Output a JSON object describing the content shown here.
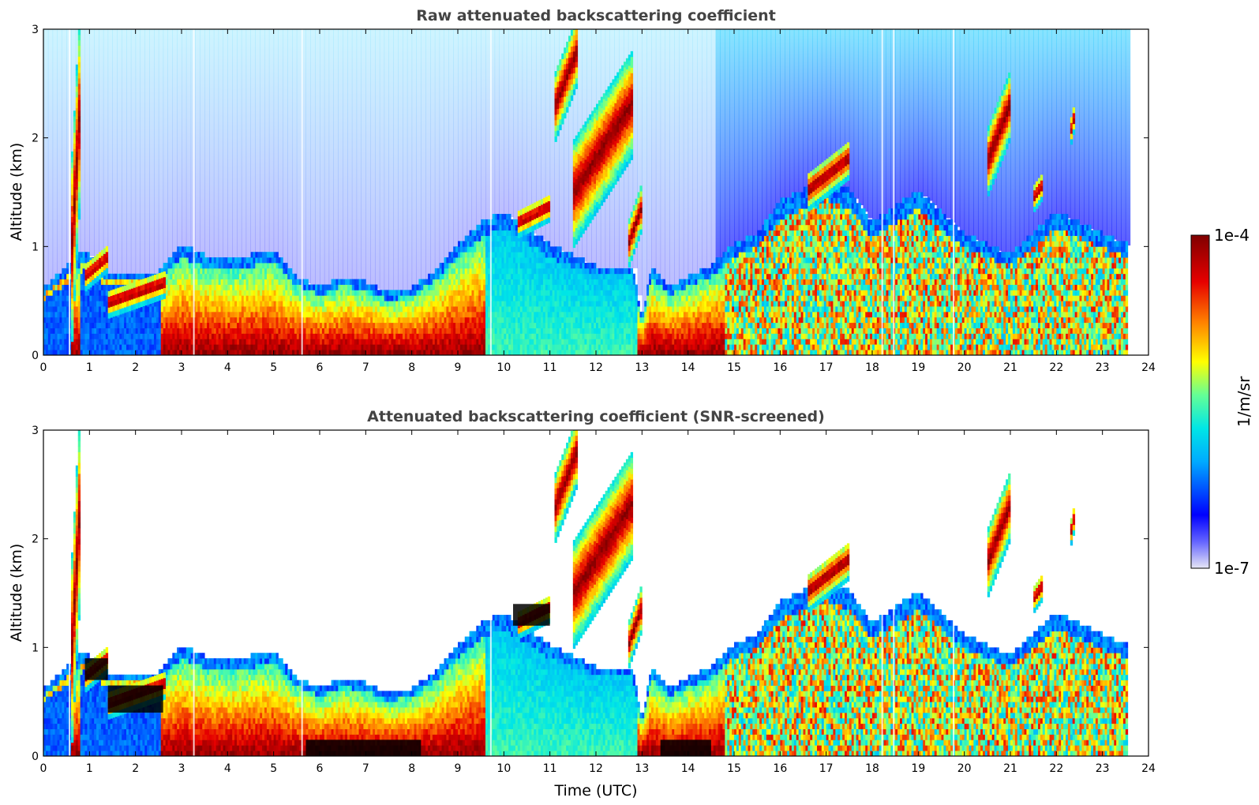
{
  "colors": {
    "scale": [
      "#e6e6f5",
      "#0000ff",
      "#00c8ff",
      "#64ff96",
      "#ffff00",
      "#ff8000",
      "#e60000",
      "#800000"
    ],
    "black": "#000000"
  },
  "colorbar": {
    "max_label": "1e-4",
    "min_label": "1e-7",
    "unit_label": "1/m/sr",
    "range": [
      1e-07,
      0.0001
    ],
    "scale": "log"
  },
  "chart_data": [
    {
      "type": "heatmap",
      "title": "Raw attenuated backscattering coefficient",
      "xlabel": "",
      "ylabel": "Altitude (km)",
      "xlim": [
        0,
        24
      ],
      "ylim": [
        0,
        3
      ],
      "x_ticks": [
        "0",
        "1",
        "2",
        "3",
        "4",
        "5",
        "6",
        "7",
        "8",
        "9",
        "10",
        "11",
        "12",
        "13",
        "14",
        "15",
        "16",
        "17",
        "18",
        "19",
        "20",
        "21",
        "22",
        "23",
        "24"
      ],
      "y_ticks": [
        "0",
        "1",
        "2",
        "3"
      ],
      "data_end_time": 23.55,
      "boundary_layer_top_km": [
        [
          0,
          0.6
        ],
        [
          0.9,
          0.95
        ],
        [
          1.4,
          0.75
        ],
        [
          2.5,
          0.75
        ],
        [
          3,
          1.0
        ],
        [
          3.5,
          0.9
        ],
        [
          4,
          0.85
        ],
        [
          4.5,
          0.9
        ],
        [
          5,
          0.95
        ],
        [
          5.5,
          0.7
        ],
        [
          6,
          0.6
        ],
        [
          6.5,
          0.7
        ],
        [
          7,
          0.65
        ],
        [
          7.5,
          0.55
        ],
        [
          8,
          0.6
        ],
        [
          8.5,
          0.75
        ],
        [
          9,
          1.0
        ],
        [
          9.5,
          1.2
        ],
        [
          10,
          1.3
        ],
        [
          11,
          1.0
        ],
        [
          12,
          0.8
        ],
        [
          12.8,
          0.8
        ],
        [
          13,
          0.3
        ],
        [
          13.2,
          0.8
        ],
        [
          13.6,
          0.6
        ],
        [
          14,
          0.7
        ],
        [
          14.5,
          0.8
        ],
        [
          15,
          1.0
        ],
        [
          15.5,
          1.1
        ],
        [
          16,
          1.4
        ],
        [
          16.5,
          1.5
        ],
        [
          17,
          1.6
        ],
        [
          17.5,
          1.5
        ],
        [
          18,
          1.2
        ],
        [
          19,
          1.5
        ],
        [
          19.5,
          1.3
        ],
        [
          20,
          1.1
        ],
        [
          21,
          0.9
        ],
        [
          22,
          1.3
        ],
        [
          23,
          1.1
        ],
        [
          23.55,
          1.0
        ]
      ],
      "elevated_layers": [
        {
          "t_start": 0.6,
          "t_end": 0.8,
          "alt_bottom_km": 0.5,
          "alt_top_km": 3.0,
          "peak": "1e-4"
        },
        {
          "t_start": 0.9,
          "t_end": 1.4,
          "alt_bottom_km": 0.65,
          "alt_top_km": 0.95,
          "peak": "1e-4"
        },
        {
          "t_start": 1.4,
          "t_end": 2.6,
          "alt_bottom_km": 0.4,
          "alt_top_km": 0.7,
          "peak": "1e-4"
        },
        {
          "t_start": 10.3,
          "t_end": 11.0,
          "alt_bottom_km": 1.15,
          "alt_top_km": 1.4,
          "peak": "1e-4"
        },
        {
          "t_start": 11.1,
          "t_end": 11.6,
          "alt_bottom_km": 2.1,
          "alt_top_km": 3.0,
          "peak": "1e-4"
        },
        {
          "t_start": 11.5,
          "t_end": 12.8,
          "alt_bottom_km": 1.2,
          "alt_top_km": 2.6,
          "peak": "1e-4"
        },
        {
          "t_start": 12.7,
          "t_end": 13.0,
          "alt_bottom_km": 0.9,
          "alt_top_km": 1.5,
          "peak": "1e-4"
        },
        {
          "t_start": 16.6,
          "t_end": 17.5,
          "alt_bottom_km": 1.4,
          "alt_top_km": 1.9,
          "peak": "1e-4"
        },
        {
          "t_start": 20.5,
          "t_end": 21.0,
          "alt_bottom_km": 1.6,
          "alt_top_km": 2.5,
          "peak": "1e-4"
        },
        {
          "t_start": 21.5,
          "t_end": 21.7,
          "alt_bottom_km": 1.4,
          "alt_top_km": 1.6,
          "peak": "1e-4"
        },
        {
          "t_start": 22.3,
          "t_end": 22.4,
          "alt_bottom_km": 2.0,
          "alt_top_km": 2.3,
          "peak": "1e-4"
        }
      ],
      "noise_above_layers": true
    },
    {
      "type": "heatmap",
      "title": "Attenuated backscattering coefficient (SNR-screened)",
      "xlabel": "Time (UTC)",
      "ylabel": "Altitude (km)",
      "xlim": [
        0,
        24
      ],
      "ylim": [
        0,
        3
      ],
      "x_ticks": [
        "0",
        "1",
        "2",
        "3",
        "4",
        "5",
        "6",
        "7",
        "8",
        "9",
        "10",
        "11",
        "12",
        "13",
        "14",
        "15",
        "16",
        "17",
        "18",
        "19",
        "20",
        "21",
        "22",
        "23",
        "24"
      ],
      "y_ticks": [
        "0",
        "1",
        "2",
        "3"
      ],
      "data_end_time": 23.55,
      "noise_above_layers": false,
      "saturated_color": "#000000",
      "saturated_regions": [
        {
          "t_start": 0.9,
          "t_end": 1.4,
          "alt_bottom_km": 0.7,
          "alt_top_km": 0.9
        },
        {
          "t_start": 1.4,
          "t_end": 2.6,
          "alt_bottom_km": 0.4,
          "alt_top_km": 0.65
        },
        {
          "t_start": 5.7,
          "t_end": 8.2,
          "alt_bottom_km": 0.0,
          "alt_top_km": 0.15
        },
        {
          "t_start": 10.2,
          "t_end": 11.0,
          "alt_bottom_km": 1.2,
          "alt_top_km": 1.4
        },
        {
          "t_start": 13.4,
          "t_end": 14.5,
          "alt_bottom_km": 0.0,
          "alt_top_km": 0.15
        }
      ]
    }
  ]
}
